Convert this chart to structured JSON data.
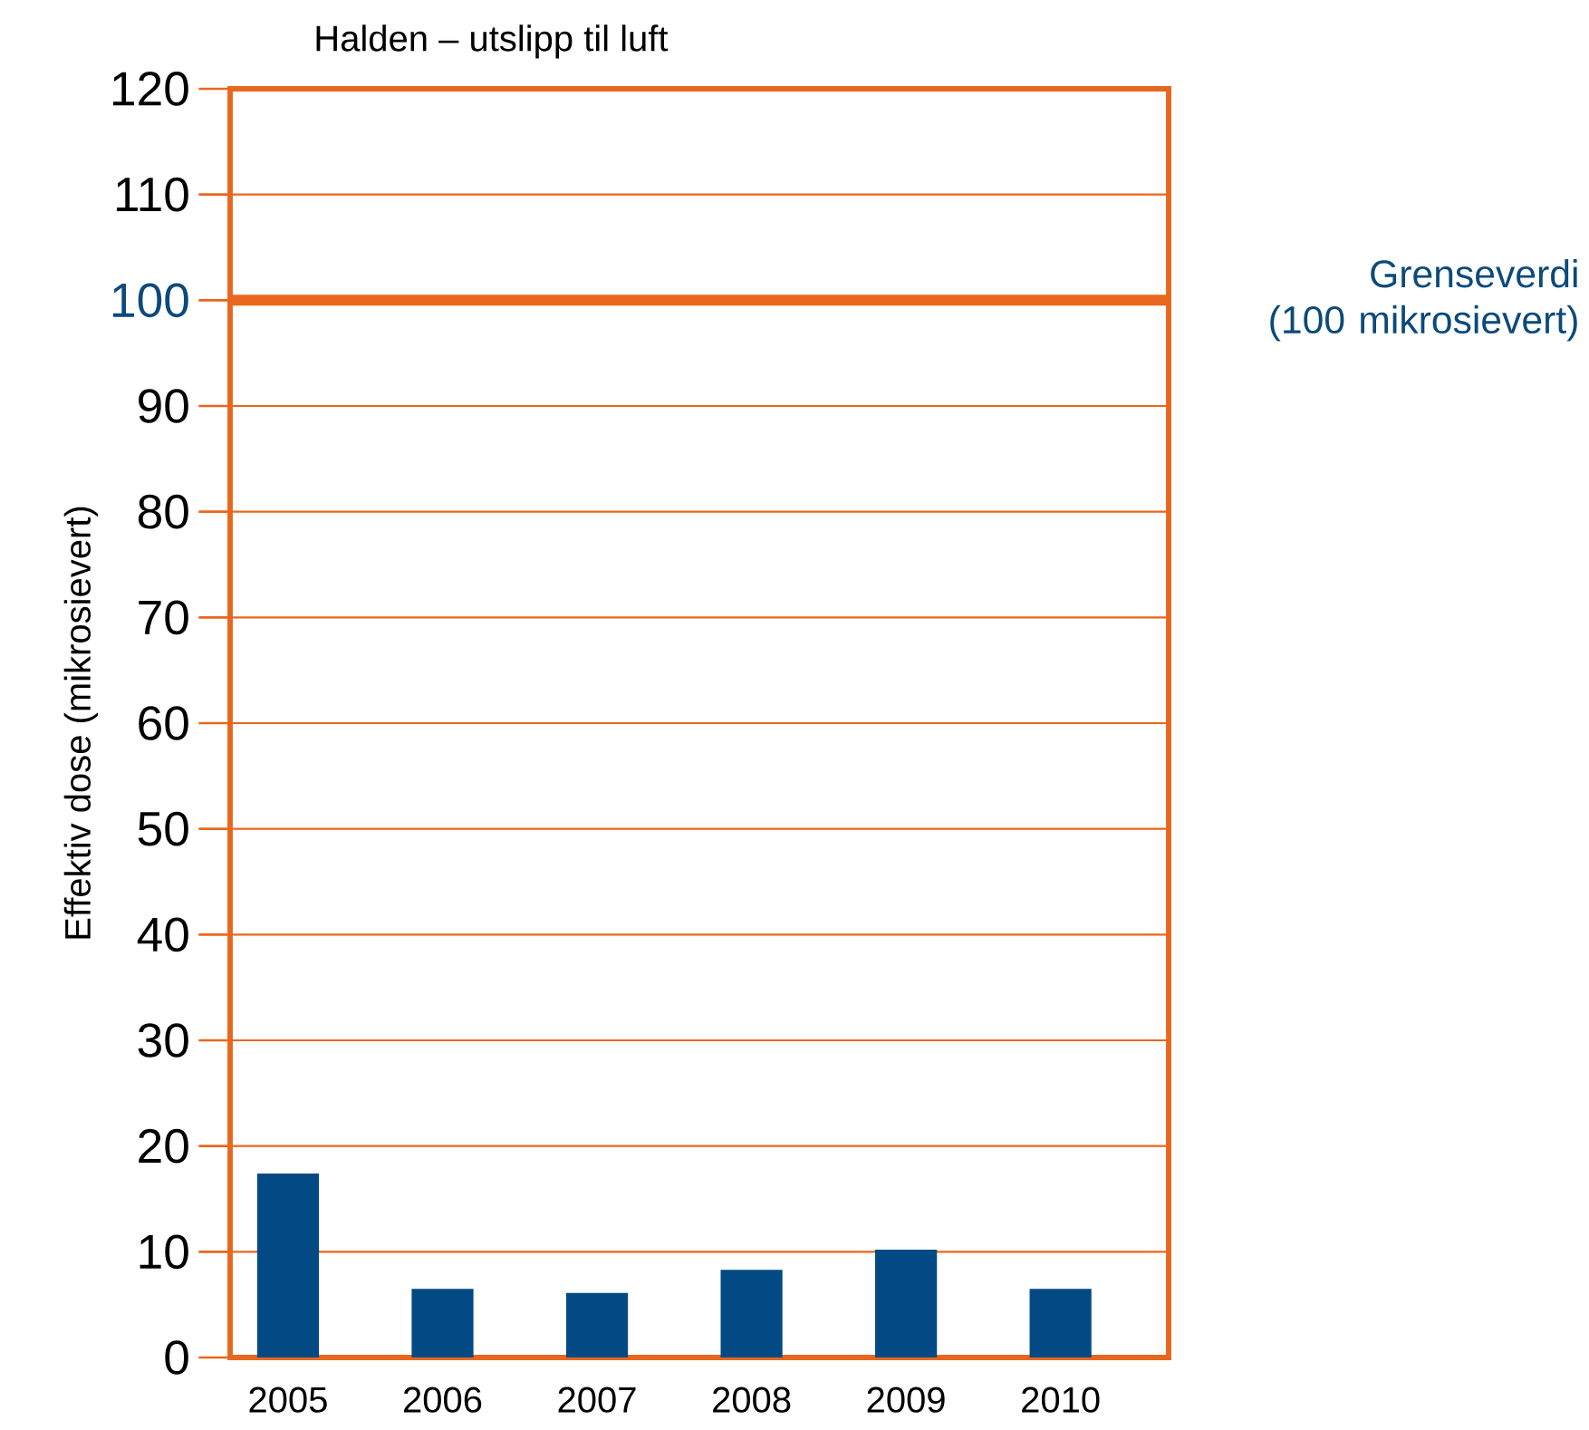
{
  "chart_data": {
    "type": "bar",
    "title": "Halden – utslipp til luft",
    "ylabel": "Effektiv dose (mikrosievert)",
    "categories": [
      "2005",
      "2006",
      "2007",
      "2008",
      "2009",
      "2010"
    ],
    "values": [
      17.4,
      6.5,
      6.1,
      8.3,
      10.2,
      6.5
    ],
    "color": "#034a85",
    "ylim": [
      0,
      120
    ],
    "yticks": [
      0,
      10,
      20,
      30,
      40,
      50,
      60,
      70,
      80,
      90,
      100,
      110,
      120
    ],
    "grid": "y",
    "ref_lines": [
      {
        "axis": "y",
        "value": 100,
        "label": "Grenseverdi (100 mikrosievert)",
        "color": "#e8671e"
      }
    ]
  }
}
